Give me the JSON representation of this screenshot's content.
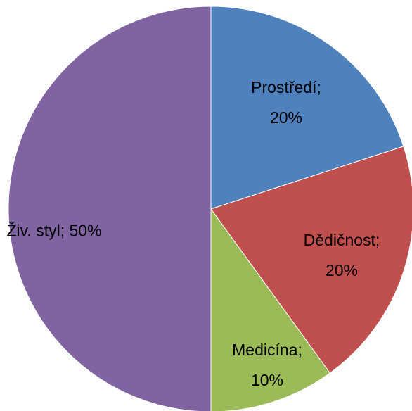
{
  "chart_data": {
    "type": "pie",
    "labels": [
      "Prostředí; 20%",
      "Dědičnost; 20%",
      "Medicína; 10%",
      "Živ. styl; 50%"
    ],
    "values": [
      20,
      20,
      10,
      50
    ],
    "colors": [
      "#4f81bd",
      "#c0504d",
      "#9bbb59",
      "#8064a2"
    ]
  }
}
